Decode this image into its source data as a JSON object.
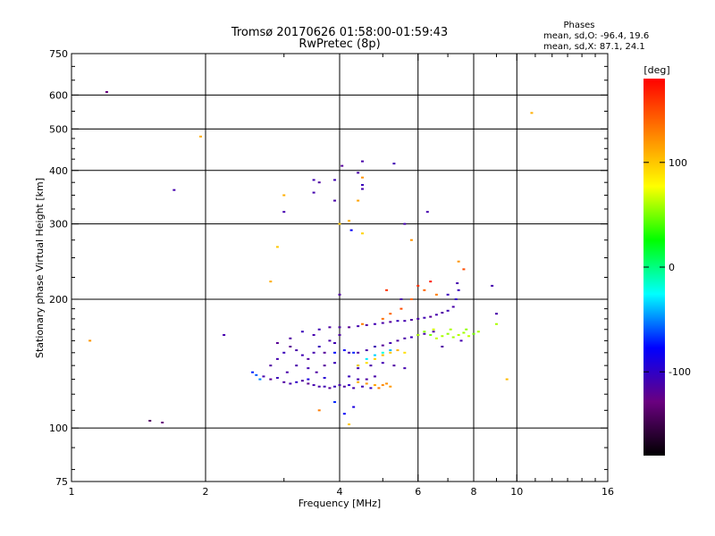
{
  "chart_data": {
    "type": "scatter",
    "title": "Tromsø 20170626 01:58:00-01:59:43",
    "subtitle": "RwPretec (8p)",
    "stats": {
      "heading": "Phases",
      "line_o": "mean, sd,O: -96.4, 19.6",
      "line_x": "mean, sd,X:  87.1, 24.1"
    },
    "xlabel": "Frequency [MHz]",
    "ylabel": "Stationary phase Virtual Height [km]",
    "x_scale": "log",
    "y_scale": "log",
    "xlim": [
      1,
      16
    ],
    "ylim": [
      75,
      750
    ],
    "x_ticks": [
      1,
      2,
      4,
      6,
      8,
      10,
      16
    ],
    "x_tick_labels": [
      "1",
      "2",
      "4",
      "6",
      "8",
      "10",
      "16"
    ],
    "x_grid": [
      2,
      4,
      6,
      8,
      10
    ],
    "y_ticks": [
      75,
      100,
      200,
      300,
      400,
      500,
      600,
      750
    ],
    "y_tick_labels": [
      "75",
      "100",
      "200",
      "300",
      "400",
      "500",
      "600",
      "750"
    ],
    "y_grid": [
      100,
      200,
      300,
      400,
      500,
      600
    ],
    "grid": true,
    "colorbar": {
      "label": "[deg]",
      "range": [
        -180,
        180
      ],
      "ticks": [
        100,
        0,
        -100
      ],
      "tick_labels": [
        "100",
        "0",
        "-100"
      ],
      "colormap": [
        "#000000",
        "#6a0080",
        "#0000ff",
        "#00ffff",
        "#00ff00",
        "#ffff00",
        "#ff8000",
        "#ff0000"
      ]
    },
    "series": [
      {
        "mode": "O",
        "points": [
          [
            2.7,
            132,
            -110
          ],
          [
            2.8,
            130,
            -120
          ],
          [
            2.9,
            131,
            -105
          ],
          [
            3.0,
            128,
            -115
          ],
          [
            3.1,
            127,
            -110
          ],
          [
            3.2,
            128,
            -100
          ],
          [
            3.3,
            129,
            -115
          ],
          [
            3.4,
            127,
            -120
          ],
          [
            3.5,
            126,
            -110
          ],
          [
            3.6,
            125,
            -112
          ],
          [
            3.7,
            125,
            -108
          ],
          [
            3.8,
            124,
            -118
          ],
          [
            3.9,
            125,
            -105
          ],
          [
            4.0,
            126,
            -110
          ],
          [
            4.1,
            125,
            -115
          ],
          [
            4.2,
            126,
            -100
          ],
          [
            4.3,
            124,
            -112
          ],
          [
            4.5,
            125,
            -108
          ],
          [
            4.7,
            124,
            -102
          ],
          [
            2.6,
            133,
            -60
          ],
          [
            2.55,
            135,
            -70
          ],
          [
            2.65,
            130,
            -50
          ],
          [
            2.8,
            140,
            -115
          ],
          [
            2.9,
            145,
            -110
          ],
          [
            3.0,
            150,
            -105
          ],
          [
            3.1,
            155,
            -120
          ],
          [
            3.2,
            152,
            -112
          ],
          [
            3.3,
            148,
            -108
          ],
          [
            3.4,
            145,
            -115
          ],
          [
            3.5,
            150,
            -110
          ],
          [
            3.6,
            155,
            -105
          ],
          [
            3.7,
            150,
            -118
          ],
          [
            3.8,
            160,
            -112
          ],
          [
            3.9,
            158,
            -108
          ],
          [
            4.0,
            165,
            -115
          ],
          [
            3.5,
            165,
            -110
          ],
          [
            3.3,
            168,
            -105
          ],
          [
            3.1,
            162,
            -115
          ],
          [
            2.9,
            158,
            -120
          ],
          [
            3.6,
            170,
            -108
          ],
          [
            3.8,
            172,
            -115
          ],
          [
            3.2,
            140,
            -112
          ],
          [
            3.4,
            138,
            -110
          ],
          [
            3.7,
            140,
            -118
          ],
          [
            3.9,
            142,
            -105
          ],
          [
            3.05,
            135,
            -112
          ],
          [
            3.55,
            135,
            -115
          ],
          [
            3.4,
            130,
            -90
          ],
          [
            3.7,
            131,
            -95
          ],
          [
            4.0,
            172,
            -115
          ],
          [
            4.2,
            172,
            -120
          ],
          [
            4.4,
            173,
            -110
          ],
          [
            4.6,
            174,
            -115
          ],
          [
            4.8,
            175,
            -108
          ],
          [
            5.0,
            176,
            -112
          ],
          [
            5.2,
            177,
            -118
          ],
          [
            5.4,
            178,
            -105
          ],
          [
            5.6,
            178,
            -110
          ],
          [
            5.8,
            179,
            -115
          ],
          [
            6.0,
            180,
            -112
          ],
          [
            6.2,
            181,
            -108
          ],
          [
            6.4,
            182,
            -118
          ],
          [
            6.6,
            184,
            -110
          ],
          [
            6.8,
            186,
            -115
          ],
          [
            7.0,
            188,
            -108
          ],
          [
            7.2,
            192,
            -112
          ],
          [
            7.3,
            200,
            -100
          ],
          [
            7.4,
            210,
            -105
          ],
          [
            7.35,
            218,
            -110
          ],
          [
            3.9,
            150,
            -75
          ],
          [
            4.1,
            152,
            -80
          ],
          [
            4.3,
            150,
            -70
          ],
          [
            4.2,
            150,
            -110
          ],
          [
            4.4,
            150,
            -115
          ],
          [
            4.6,
            152,
            -112
          ],
          [
            4.8,
            155,
            -108
          ],
          [
            5.0,
            156,
            -118
          ],
          [
            5.2,
            158,
            -110
          ],
          [
            5.4,
            160,
            -115
          ],
          [
            5.6,
            162,
            -112
          ],
          [
            5.8,
            163,
            -105
          ],
          [
            6.0,
            165,
            -118
          ],
          [
            6.2,
            166,
            -110
          ],
          [
            6.5,
            168,
            -115
          ],
          [
            4.4,
            140,
            -40
          ],
          [
            4.6,
            145,
            -30
          ],
          [
            4.8,
            148,
            -35
          ],
          [
            5.0,
            150,
            -20
          ],
          [
            5.2,
            152,
            -40
          ],
          [
            4.4,
            138,
            -110
          ],
          [
            4.7,
            140,
            -112
          ],
          [
            5.0,
            142,
            -108
          ],
          [
            5.3,
            140,
            -115
          ],
          [
            5.6,
            138,
            -110
          ],
          [
            4.2,
            132,
            -105
          ],
          [
            4.4,
            130,
            -110
          ],
          [
            4.6,
            130,
            -115
          ],
          [
            4.8,
            132,
            -112
          ],
          [
            3.5,
            355,
            -110
          ],
          [
            3.6,
            375,
            -115
          ],
          [
            3.9,
            380,
            -108
          ],
          [
            4.4,
            395,
            -112
          ],
          [
            4.5,
            370,
            -105
          ],
          [
            4.5,
            362,
            -110
          ],
          [
            4.05,
            410,
            -118
          ],
          [
            3.0,
            320,
            -110
          ],
          [
            3.5,
            380,
            -108
          ],
          [
            3.9,
            340,
            -112
          ],
          [
            1.7,
            360,
            -110
          ],
          [
            1.2,
            610,
            -130
          ],
          [
            2.2,
            165,
            -110
          ],
          [
            5.3,
            415,
            -108
          ],
          [
            4.25,
            290,
            -80
          ],
          [
            5.6,
            300,
            -110
          ],
          [
            6.3,
            320,
            -110
          ],
          [
            8.8,
            215,
            -110
          ],
          [
            9.0,
            185,
            -112
          ],
          [
            7.0,
            205,
            -105
          ],
          [
            4.0,
            205,
            -115
          ],
          [
            4.5,
            420,
            -112
          ],
          [
            5.5,
            200,
            -110
          ],
          [
            6.8,
            155,
            -115
          ],
          [
            7.5,
            160,
            -110
          ],
          [
            1.5,
            104,
            -140
          ],
          [
            1.6,
            103,
            -130
          ],
          [
            3.9,
            115,
            -70
          ],
          [
            4.1,
            108,
            -80
          ],
          [
            4.3,
            112,
            -90
          ]
        ]
      },
      {
        "mode": "X",
        "points": [
          [
            4.4,
            128,
            110
          ],
          [
            4.6,
            127,
            120
          ],
          [
            4.8,
            126,
            115
          ],
          [
            5.0,
            126,
            125
          ],
          [
            5.2,
            125,
            118
          ],
          [
            4.9,
            124,
            130
          ],
          [
            5.1,
            127,
            122
          ],
          [
            4.4,
            140,
            100
          ],
          [
            4.6,
            142,
            90
          ],
          [
            4.8,
            145,
            95
          ],
          [
            5.0,
            148,
            105
          ],
          [
            5.2,
            150,
            100
          ],
          [
            5.4,
            152,
            108
          ],
          [
            5.6,
            150,
            90
          ],
          [
            6.0,
            165,
            60
          ],
          [
            6.2,
            168,
            55
          ],
          [
            6.4,
            165,
            50
          ],
          [
            6.6,
            162,
            65
          ],
          [
            6.8,
            164,
            60
          ],
          [
            7.0,
            166,
            55
          ],
          [
            7.2,
            163,
            58
          ],
          [
            7.4,
            165,
            62
          ],
          [
            7.6,
            167,
            58
          ],
          [
            7.8,
            164,
            65
          ],
          [
            8.0,
            166,
            50
          ],
          [
            8.2,
            168,
            60
          ],
          [
            6.5,
            170,
            68
          ],
          [
            7.1,
            170,
            60
          ],
          [
            7.7,
            170,
            55
          ],
          [
            6.0,
            215,
            160
          ],
          [
            6.2,
            210,
            140
          ],
          [
            6.4,
            220,
            170
          ],
          [
            6.6,
            205,
            130
          ],
          [
            7.4,
            245,
            120
          ],
          [
            7.6,
            235,
            150
          ],
          [
            5.8,
            200,
            140
          ],
          [
            5.5,
            190,
            150
          ],
          [
            5.2,
            185,
            140
          ],
          [
            5.0,
            180,
            135
          ],
          [
            4.5,
            175,
            130
          ],
          [
            4.0,
            300,
            100
          ],
          [
            4.2,
            305,
            110
          ],
          [
            4.5,
            285,
            95
          ],
          [
            5.8,
            275,
            120
          ],
          [
            2.8,
            220,
            110
          ],
          [
            2.9,
            265,
            100
          ],
          [
            3.0,
            350,
            110
          ],
          [
            4.5,
            385,
            120
          ],
          [
            4.4,
            340,
            115
          ],
          [
            1.1,
            160,
            120
          ],
          [
            1.95,
            480,
            110
          ],
          [
            10.8,
            545,
            110
          ],
          [
            9.5,
            130,
            105
          ],
          [
            9.0,
            175,
            60
          ],
          [
            3.6,
            110,
            130
          ],
          [
            4.2,
            102,
            100
          ],
          [
            5.1,
            210,
            160
          ]
        ]
      }
    ]
  }
}
